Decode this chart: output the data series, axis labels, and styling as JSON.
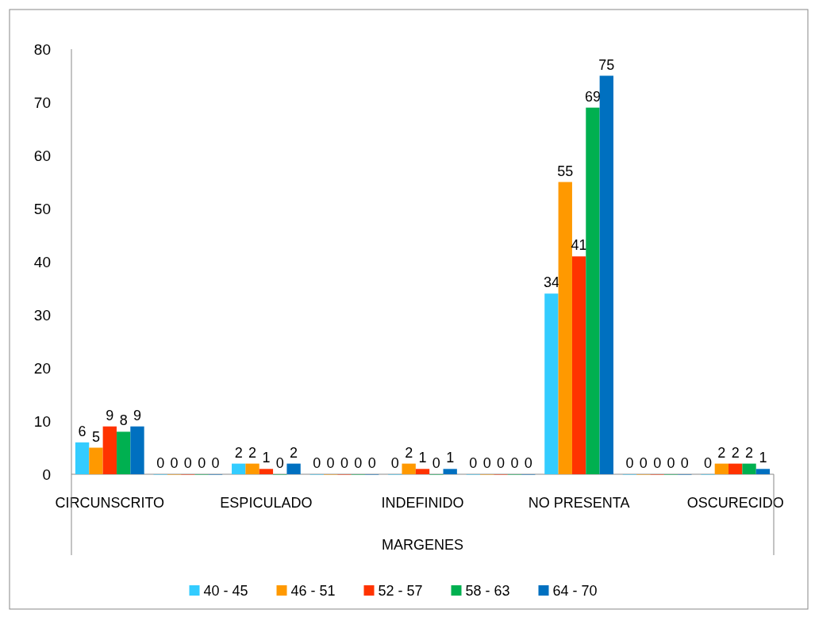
{
  "chart_data": {
    "type": "bar",
    "xlabel": "MARGENES",
    "categories": [
      "CIRCUNSCRITO",
      null,
      "ESPICULADO",
      null,
      "INDEFINIDO",
      null,
      "NO PRESENTA",
      null,
      "OSCURECIDO"
    ],
    "series": [
      {
        "name": "40 - 45",
        "color": "#33ccff",
        "values": [
          6,
          0,
          2,
          0,
          0,
          0,
          34,
          0,
          0
        ]
      },
      {
        "name": "46 - 51",
        "color": "#ff9900",
        "values": [
          5,
          0,
          2,
          0,
          2,
          0,
          55,
          0,
          2
        ]
      },
      {
        "name": "52 - 57",
        "color": "#ff3300",
        "values": [
          9,
          0,
          1,
          0,
          1,
          0,
          41,
          0,
          2
        ]
      },
      {
        "name": "58 - 63",
        "color": "#00b050",
        "values": [
          8,
          0,
          0,
          0,
          0,
          0,
          69,
          0,
          2
        ]
      },
      {
        "name": "64 - 70",
        "color": "#0070c0",
        "values": [
          9,
          0,
          2,
          0,
          1,
          0,
          75,
          0,
          1
        ]
      }
    ],
    "ylim": [
      0,
      80
    ],
    "yticks": [
      0,
      10,
      20,
      30,
      40,
      50,
      60,
      70,
      80
    ],
    "data_labels": true,
    "legend": "bottom",
    "grid": false
  }
}
